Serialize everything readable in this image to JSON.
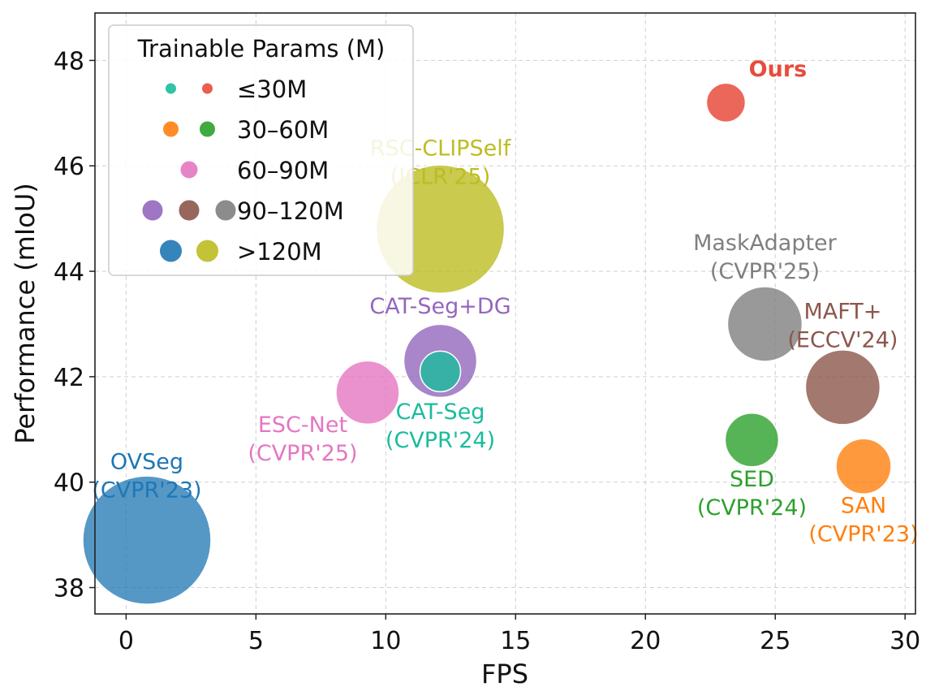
{
  "chart_data": {
    "type": "scatter",
    "title": "",
    "xlabel": "FPS",
    "ylabel": "Performance (mIoU)",
    "xlim": [
      -1.2,
      30.4
    ],
    "ylim": [
      37.5,
      48.9
    ],
    "xticks": [
      0,
      5,
      10,
      15,
      20,
      25,
      30
    ],
    "yticks": [
      38,
      40,
      42,
      44,
      46,
      48
    ],
    "grid": true,
    "legend": {
      "title": "Trainable Params (M)",
      "placement": "top-left",
      "entries": [
        {
          "label": "≤30M",
          "size": 14,
          "colors": [
            "#1abc9c",
            "#e74c3c"
          ]
        },
        {
          "label": "30–60M",
          "size": 20,
          "colors": [
            "#ff7f0e",
            "#2ca02c"
          ]
        },
        {
          "label": "60–90M",
          "size": 22,
          "colors": [
            "#e377c2"
          ]
        },
        {
          "label": "90–120M",
          "size": 26,
          "colors": [
            "#9467bd",
            "#8c564b",
            "#7f7f7f"
          ]
        },
        {
          "label": ">120M",
          "size": 28,
          "colors": [
            "#1f77b4",
            "#bcbd22"
          ]
        }
      ]
    },
    "points": [
      {
        "id": "ovseg",
        "name": "OVSeg",
        "venue": "(CVPR'23)",
        "fps": 0.8,
        "miou": 38.9,
        "radius": 79,
        "color": "#1f77b4",
        "alpha": 0.76,
        "text_color": "#1f77b4",
        "label_pos": [
          0.8,
          40.25
        ],
        "bold": false,
        "z": 1
      },
      {
        "id": "rsc-clipself",
        "name": "RSC-CLIPSelf",
        "venue": "(ICLR'25)",
        "fps": 12.1,
        "miou": 44.8,
        "radius": 79,
        "color": "#bcbd22",
        "alpha": 0.8,
        "text_color": "#bcbd22",
        "label_pos": [
          12.1,
          46.2
        ],
        "bold": false,
        "z": 1
      },
      {
        "id": "esc-net",
        "name": "ESC-Net",
        "venue": "(CVPR'25)",
        "fps": 9.3,
        "miou": 41.7,
        "radius": 39,
        "color": "#e377c2",
        "alpha": 0.8,
        "text_color": "#e377c2",
        "label_pos": [
          6.8,
          40.95
        ],
        "bold": false,
        "z": 2
      },
      {
        "id": "cat-seg-dg",
        "name": "CAT-Seg+DG",
        "venue": "",
        "fps": 12.1,
        "miou": 42.3,
        "radius": 45,
        "color": "#9467bd",
        "alpha": 0.8,
        "text_color": "#9467bd",
        "label_pos": [
          12.1,
          43.2
        ],
        "bold": false,
        "z": 3
      },
      {
        "id": "cat-seg",
        "name": "CAT-Seg",
        "venue": "(CVPR'24)",
        "fps": 12.1,
        "miou": 42.1,
        "radius": 25,
        "color": "#1abc9c",
        "alpha": 0.8,
        "text_color": "#1abc9c",
        "label_pos": [
          12.1,
          41.2
        ],
        "bold": false,
        "z": 4
      },
      {
        "id": "ours",
        "name": "Ours",
        "venue": "",
        "fps": 23.1,
        "miou": 47.2,
        "radius": 24,
        "color": "#e74c3c",
        "alpha": 0.85,
        "text_color": "#e74c3c",
        "label_pos": [
          25.1,
          47.7
        ],
        "bold": true,
        "z": 2
      },
      {
        "id": "maskadapter",
        "name": "MaskAdapter",
        "venue": "(CVPR'25)",
        "fps": 24.6,
        "miou": 43.0,
        "radius": 46,
        "color": "#7f7f7f",
        "alpha": 0.8,
        "text_color": "#7f7f7f",
        "label_pos": [
          24.6,
          44.4
        ],
        "bold": false,
        "z": 2
      },
      {
        "id": "maft-plus",
        "name": "MAFT+",
        "venue": "(ECCV'24)",
        "fps": 27.6,
        "miou": 41.8,
        "radius": 46,
        "color": "#8c564b",
        "alpha": 0.8,
        "text_color": "#8c564b",
        "label_pos": [
          27.6,
          43.1
        ],
        "bold": false,
        "z": 2
      },
      {
        "id": "sed",
        "name": "SED",
        "venue": "(CVPR'24)",
        "fps": 24.1,
        "miou": 40.8,
        "radius": 33,
        "color": "#2ca02c",
        "alpha": 0.8,
        "text_color": "#2ca02c",
        "label_pos": [
          24.1,
          39.92
        ],
        "bold": false,
        "z": 2
      },
      {
        "id": "san",
        "name": "SAN",
        "venue": "(CVPR'23)",
        "fps": 28.4,
        "miou": 40.3,
        "radius": 34,
        "color": "#ff7f0e",
        "alpha": 0.8,
        "text_color": "#ff7f0e",
        "label_pos": [
          28.4,
          39.42
        ],
        "bold": false,
        "z": 2
      }
    ]
  }
}
